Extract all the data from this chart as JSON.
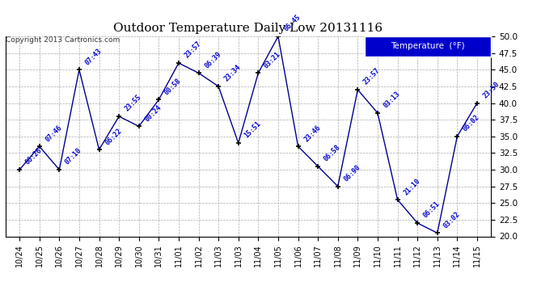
{
  "title": "Outdoor Temperature Daily Low 20131116",
  "copyright": "Copyright 2013 Cartronics.com",
  "legend_label": "Temperature  (°F)",
  "x_labels": [
    "10/24",
    "10/25",
    "10/26",
    "10/27",
    "10/28",
    "10/29",
    "10/30",
    "10/31",
    "11/01",
    "11/02",
    "11/03",
    "11/03",
    "11/04",
    "11/05",
    "11/06",
    "11/07",
    "11/08",
    "11/09",
    "11/10",
    "11/11",
    "11/12",
    "11/13",
    "11/14",
    "11/15"
  ],
  "y_values": [
    30.0,
    33.5,
    30.0,
    45.0,
    33.0,
    38.0,
    36.5,
    40.5,
    46.0,
    44.5,
    42.5,
    34.0,
    44.5,
    50.0,
    33.5,
    30.5,
    27.5,
    42.0,
    38.5,
    25.5,
    22.0,
    20.5,
    35.0,
    40.0
  ],
  "point_labels": [
    "06:26",
    "07:46",
    "07:10",
    "07:43",
    "06:22",
    "23:55",
    "00:24",
    "00:58",
    "23:57",
    "06:39",
    "23:34",
    "15:51",
    "03:21",
    "06:45",
    "23:46",
    "06:58",
    "06:90",
    "23:57",
    "03:13",
    "21:10",
    "06:51",
    "03:02",
    "06:02",
    "23:50"
  ],
  "line_color": "#00008B",
  "marker_color": "#000000",
  "label_color": "#0000CD",
  "background_color": "#ffffff",
  "grid_color": "#AAAAAA",
  "ylim": [
    20.0,
    50.0
  ],
  "yticks": [
    20.0,
    22.5,
    25.0,
    27.5,
    30.0,
    32.5,
    35.0,
    37.5,
    40.0,
    42.5,
    45.0,
    47.5,
    50.0
  ],
  "legend_bg": "#0000CD",
  "legend_fg": "#ffffff"
}
